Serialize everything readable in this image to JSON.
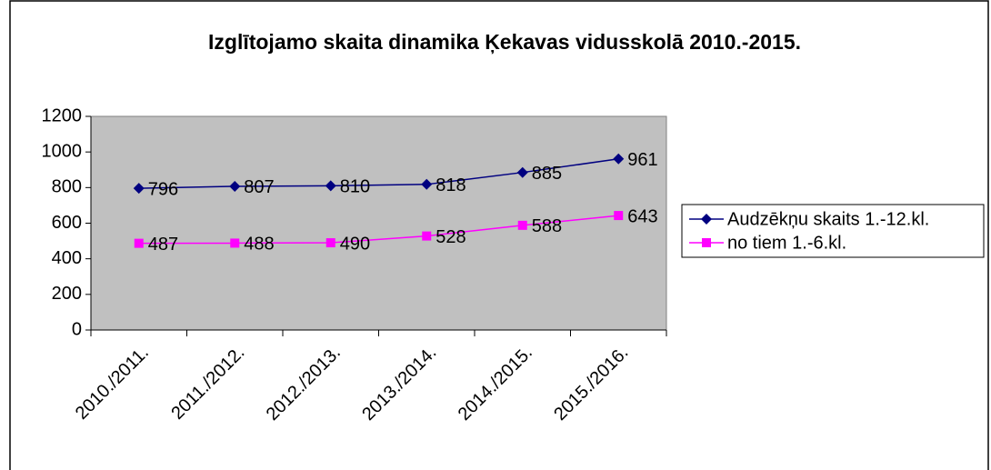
{
  "chart_data": {
    "type": "line",
    "title": "Izglītojamo skaita dinamika Ķekavas vidusskolā 2010.-2015.",
    "categories": [
      "2010./2011.",
      "2011./2012.",
      "2012./2013.",
      "2013./2014.",
      "2014./2015.",
      "2015./2016."
    ],
    "series": [
      {
        "name": "Audzēkņu skaits 1.-12.kl.",
        "color": "#000080",
        "values": [
          796,
          807,
          810,
          818,
          885,
          961
        ]
      },
      {
        "name": "no tiem 1.-6.kl.",
        "color": "#ff00ff",
        "values": [
          487,
          488,
          490,
          528,
          588,
          643
        ]
      }
    ],
    "ylim": [
      0,
      1200
    ],
    "yticks": [
      0,
      200,
      400,
      600,
      800,
      1000,
      1200
    ],
    "plot_background": "#c0c0c0",
    "legend": "right"
  }
}
